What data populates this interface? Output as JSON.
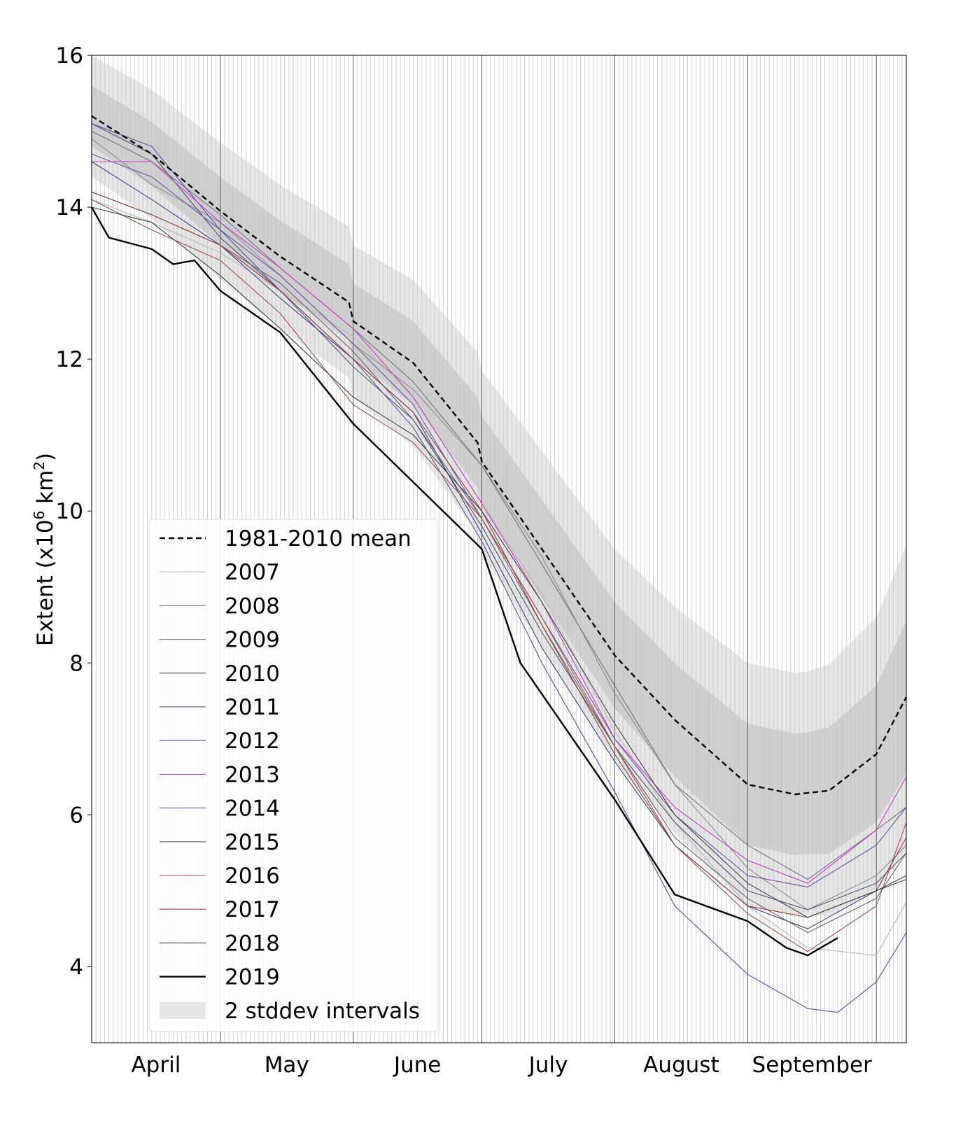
{
  "chart_data": {
    "type": "line",
    "title": "",
    "xlabel": "",
    "ylabel": "Extent (x10⁶ km²)",
    "ylabel_parts": {
      "main": "Extent (x10",
      "sup1": "6",
      "mid": " km",
      "sup2": "2",
      "end": ")"
    },
    "xlim": [
      "04-01",
      "10-08"
    ],
    "ylim": [
      3,
      16
    ],
    "yticks": [
      4,
      6,
      8,
      10,
      12,
      14,
      16
    ],
    "xtick_labels": [
      {
        "label": "April",
        "month": "04"
      },
      {
        "label": "May",
        "month": "05"
      },
      {
        "label": "June",
        "month": "06"
      },
      {
        "label": "July",
        "month": "07"
      },
      {
        "label": "August",
        "month": "08"
      },
      {
        "label": "September",
        "month": "09"
      }
    ],
    "grid": "daily vertical lines, month boundaries darker",
    "legend": "lower-left",
    "mean": {
      "name": "1981-2010 mean",
      "color": "#000000",
      "style": "dashed",
      "points": [
        [
          "04-01",
          15.2
        ],
        [
          "04-15",
          14.7
        ],
        [
          "05-01",
          13.95
        ],
        [
          "05-15",
          13.35
        ],
        [
          "05-31",
          12.75
        ],
        [
          "06-01",
          12.5
        ],
        [
          "06-15",
          11.95
        ],
        [
          "06-30",
          10.9
        ],
        [
          "07-01",
          10.65
        ],
        [
          "07-15",
          9.5
        ],
        [
          "08-01",
          8.1
        ],
        [
          "08-15",
          7.25
        ],
        [
          "09-01",
          6.4
        ],
        [
          "09-12",
          6.27
        ],
        [
          "09-20",
          6.32
        ],
        [
          "10-01",
          6.8
        ],
        [
          "10-08",
          7.55
        ]
      ]
    },
    "stddev": {
      "name": "2 stddev intervals",
      "color_2sd": "#e6e6e6",
      "color_1sd": "#cfcfcf",
      "sd": [
        [
          "04-01",
          0.4
        ],
        [
          "05-01",
          0.45
        ],
        [
          "06-01",
          0.5
        ],
        [
          "07-01",
          0.6
        ],
        [
          "08-01",
          0.7
        ],
        [
          "09-01",
          0.8
        ],
        [
          "09-15",
          0.8
        ],
        [
          "10-01",
          0.9
        ],
        [
          "10-08",
          1.0
        ]
      ]
    },
    "series": [
      {
        "name": "2007",
        "color": "#b8b8b8",
        "points": [
          [
            "04-01",
            14.1
          ],
          [
            "04-15",
            13.8
          ],
          [
            "05-01",
            13.4
          ],
          [
            "05-15",
            12.9
          ],
          [
            "06-01",
            12.3
          ],
          [
            "06-15",
            11.5
          ],
          [
            "07-01",
            10.1
          ],
          [
            "07-15",
            8.9
          ],
          [
            "08-01",
            7.1
          ],
          [
            "08-15",
            5.9
          ],
          [
            "09-01",
            4.8
          ],
          [
            "09-15",
            4.25
          ],
          [
            "10-01",
            4.15
          ],
          [
            "10-08",
            4.85
          ]
        ]
      },
      {
        "name": "2008",
        "color": "#8a8a9a",
        "points": [
          [
            "04-01",
            14.9
          ],
          [
            "04-15",
            14.3
          ],
          [
            "05-01",
            13.8
          ],
          [
            "05-15",
            13.1
          ],
          [
            "06-01",
            12.2
          ],
          [
            "06-15",
            11.6
          ],
          [
            "07-01",
            10.6
          ],
          [
            "07-15",
            9.4
          ],
          [
            "08-01",
            7.6
          ],
          [
            "08-15",
            6.4
          ],
          [
            "09-01",
            5.3
          ],
          [
            "09-15",
            4.75
          ],
          [
            "10-01",
            5.2
          ],
          [
            "10-08",
            5.6
          ]
        ]
      },
      {
        "name": "2009",
        "color": "#707080",
        "points": [
          [
            "04-01",
            15.0
          ],
          [
            "04-15",
            14.6
          ],
          [
            "05-01",
            13.9
          ],
          [
            "05-15",
            13.2
          ],
          [
            "06-01",
            12.4
          ],
          [
            "06-15",
            11.7
          ],
          [
            "07-01",
            10.6
          ],
          [
            "07-15",
            9.3
          ],
          [
            "08-01",
            7.7
          ],
          [
            "08-15",
            6.4
          ],
          [
            "09-01",
            5.6
          ],
          [
            "09-15",
            5.15
          ],
          [
            "10-01",
            5.8
          ],
          [
            "10-08",
            6.1
          ]
        ]
      },
      {
        "name": "2010",
        "color": "#505070",
        "points": [
          [
            "04-01",
            15.1
          ],
          [
            "04-15",
            14.7
          ],
          [
            "05-01",
            13.6
          ],
          [
            "05-15",
            12.9
          ],
          [
            "06-01",
            11.9
          ],
          [
            "06-15",
            11.2
          ],
          [
            "07-01",
            9.8
          ],
          [
            "07-15",
            8.4
          ],
          [
            "08-01",
            6.9
          ],
          [
            "08-15",
            5.9
          ],
          [
            "09-01",
            5.0
          ],
          [
            "09-15",
            4.75
          ],
          [
            "10-01",
            5.1
          ],
          [
            "10-08",
            5.5
          ]
        ]
      },
      {
        "name": "2011",
        "color": "#404080",
        "points": [
          [
            "04-01",
            14.6
          ],
          [
            "04-15",
            14.1
          ],
          [
            "05-01",
            13.5
          ],
          [
            "05-15",
            12.8
          ],
          [
            "06-01",
            12.0
          ],
          [
            "06-15",
            11.3
          ],
          [
            "07-01",
            9.7
          ],
          [
            "07-15",
            8.2
          ],
          [
            "08-01",
            6.7
          ],
          [
            "08-15",
            5.6
          ],
          [
            "09-01",
            4.8
          ],
          [
            "09-15",
            4.5
          ],
          [
            "10-01",
            5.0
          ],
          [
            "10-08",
            5.2
          ]
        ]
      },
      {
        "name": "2012",
        "color": "#5a50a0",
        "points": [
          [
            "04-01",
            15.1
          ],
          [
            "04-15",
            14.8
          ],
          [
            "05-01",
            13.7
          ],
          [
            "05-15",
            12.9
          ],
          [
            "06-01",
            12.0
          ],
          [
            "06-15",
            11.1
          ],
          [
            "07-01",
            9.6
          ],
          [
            "07-15",
            8.0
          ],
          [
            "08-01",
            6.3
          ],
          [
            "08-15",
            4.8
          ],
          [
            "09-01",
            3.9
          ],
          [
            "09-15",
            3.45
          ],
          [
            "09-22",
            3.4
          ],
          [
            "10-01",
            3.8
          ],
          [
            "10-08",
            4.45
          ]
        ]
      },
      {
        "name": "2013",
        "color": "#c040c0",
        "points": [
          [
            "04-01",
            14.6
          ],
          [
            "04-15",
            14.6
          ],
          [
            "05-01",
            13.8
          ],
          [
            "05-15",
            13.2
          ],
          [
            "06-01",
            12.4
          ],
          [
            "06-15",
            11.5
          ],
          [
            "07-01",
            10.1
          ],
          [
            "07-15",
            8.8
          ],
          [
            "08-01",
            7.0
          ],
          [
            "08-15",
            6.1
          ],
          [
            "09-01",
            5.4
          ],
          [
            "09-15",
            5.1
          ],
          [
            "10-01",
            5.8
          ],
          [
            "10-08",
            6.5
          ]
        ]
      },
      {
        "name": "2014",
        "color": "#7050a0",
        "points": [
          [
            "04-01",
            14.7
          ],
          [
            "04-15",
            14.4
          ],
          [
            "05-01",
            13.7
          ],
          [
            "05-15",
            13.1
          ],
          [
            "06-01",
            12.2
          ],
          [
            "06-15",
            11.4
          ],
          [
            "07-01",
            9.9
          ],
          [
            "07-15",
            8.6
          ],
          [
            "08-01",
            7.0
          ],
          [
            "08-15",
            6.0
          ],
          [
            "09-01",
            5.2
          ],
          [
            "09-15",
            5.05
          ],
          [
            "10-01",
            5.6
          ],
          [
            "10-08",
            6.1
          ]
        ]
      },
      {
        "name": "2015",
        "color": "#706070",
        "points": [
          [
            "04-01",
            14.2
          ],
          [
            "04-15",
            13.9
          ],
          [
            "05-01",
            13.5
          ],
          [
            "05-15",
            13.0
          ],
          [
            "06-01",
            12.1
          ],
          [
            "06-15",
            11.2
          ],
          [
            "07-01",
            9.9
          ],
          [
            "07-15",
            8.5
          ],
          [
            "08-01",
            6.9
          ],
          [
            "08-15",
            5.7
          ],
          [
            "09-01",
            4.9
          ],
          [
            "09-15",
            4.45
          ],
          [
            "10-01",
            4.9
          ],
          [
            "10-08",
            5.5
          ]
        ]
      },
      {
        "name": "2016",
        "color": "#a05050",
        "points": [
          [
            "04-01",
            14.1
          ],
          [
            "04-15",
            13.7
          ],
          [
            "05-01",
            13.3
          ],
          [
            "05-15",
            12.6
          ],
          [
            "06-01",
            11.4
          ],
          [
            "06-15",
            10.9
          ],
          [
            "07-01",
            9.9
          ],
          [
            "07-15",
            8.6
          ],
          [
            "08-01",
            6.9
          ],
          [
            "08-15",
            5.6
          ],
          [
            "09-01",
            4.7
          ],
          [
            "09-15",
            4.2
          ],
          [
            "10-01",
            4.8
          ],
          [
            "10-08",
            5.9
          ]
        ]
      },
      {
        "name": "2017",
        "color": "#904040",
        "points": [
          [
            "04-01",
            14.2
          ],
          [
            "04-15",
            13.9
          ],
          [
            "05-01",
            13.5
          ],
          [
            "05-15",
            12.9
          ],
          [
            "06-01",
            12.0
          ],
          [
            "06-15",
            11.3
          ],
          [
            "07-01",
            10.0
          ],
          [
            "07-15",
            8.5
          ],
          [
            "08-01",
            6.8
          ],
          [
            "08-15",
            5.6
          ],
          [
            "09-01",
            4.8
          ],
          [
            "09-15",
            4.65
          ],
          [
            "10-01",
            5.0
          ],
          [
            "10-08",
            5.7
          ]
        ]
      },
      {
        "name": "2018",
        "color": "#404040",
        "points": [
          [
            "04-01",
            14.0
          ],
          [
            "04-15",
            13.8
          ],
          [
            "05-01",
            13.1
          ],
          [
            "05-15",
            12.4
          ],
          [
            "06-01",
            11.5
          ],
          [
            "06-15",
            11.0
          ],
          [
            "07-01",
            10.0
          ],
          [
            "07-15",
            8.8
          ],
          [
            "08-01",
            7.2
          ],
          [
            "08-15",
            6.0
          ],
          [
            "09-01",
            5.1
          ],
          [
            "09-15",
            4.65
          ],
          [
            "10-01",
            5.0
          ],
          [
            "10-08",
            5.15
          ]
        ]
      },
      {
        "name": "2019",
        "color": "#000000",
        "width": 2.4,
        "points": [
          [
            "04-01",
            14.0
          ],
          [
            "04-05",
            13.6
          ],
          [
            "04-15",
            13.45
          ],
          [
            "04-20",
            13.25
          ],
          [
            "04-25",
            13.3
          ],
          [
            "05-01",
            12.9
          ],
          [
            "05-15",
            12.35
          ],
          [
            "06-01",
            11.15
          ],
          [
            "06-11",
            10.6
          ],
          [
            "07-01",
            9.5
          ],
          [
            "07-10",
            8.0
          ],
          [
            "08-01",
            6.2
          ],
          [
            "08-15",
            4.95
          ],
          [
            "09-01",
            4.6
          ],
          [
            "09-10",
            4.25
          ],
          [
            "09-15",
            4.15
          ],
          [
            "09-22",
            4.38
          ]
        ]
      }
    ]
  }
}
